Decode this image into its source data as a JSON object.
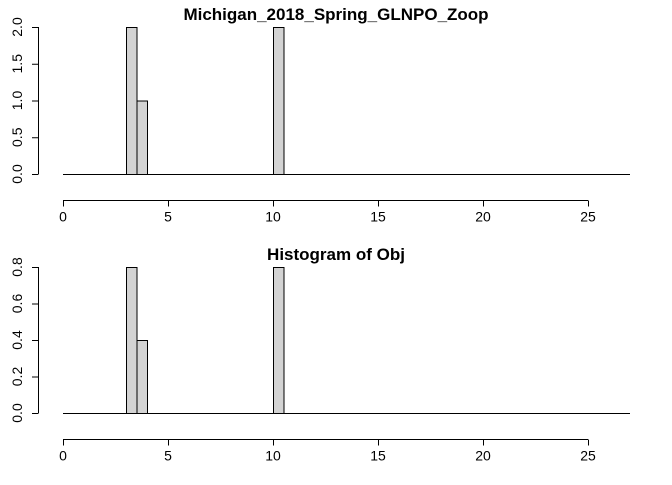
{
  "chart_data": [
    {
      "type": "bar",
      "title": "Michigan_2018_Spring_GLNPO_Zoop",
      "xlabel": "",
      "ylabel": "",
      "bin_width": 0.5,
      "bars": [
        {
          "x_start": 3.0,
          "x_end": 3.5,
          "value": 2
        },
        {
          "x_start": 3.5,
          "x_end": 4.0,
          "value": 1
        },
        {
          "x_start": 10.0,
          "x_end": 10.5,
          "value": 2
        }
      ],
      "x_baseline_range": [
        0,
        27
      ],
      "xlim": [
        0,
        27
      ],
      "ylim": [
        0,
        2
      ],
      "x_ticks": [
        0,
        5,
        10,
        15,
        20,
        25
      ],
      "x_tick_labels": [
        "0",
        "5",
        "10",
        "15",
        "20",
        "25"
      ],
      "y_ticks": [
        0,
        0.5,
        1.0,
        1.5,
        2.0
      ],
      "y_tick_labels": [
        "0.0",
        "0.5",
        "1.0",
        "1.5",
        "2.0"
      ],
      "bar_fill": "#d3d3d3",
      "bar_stroke": "#000000",
      "grid": false
    },
    {
      "type": "bar",
      "title": "Histogram of Obj",
      "xlabel": "",
      "ylabel": "",
      "bin_width": 0.5,
      "bars": [
        {
          "x_start": 3.0,
          "x_end": 3.5,
          "value": 0.8
        },
        {
          "x_start": 3.5,
          "x_end": 4.0,
          "value": 0.4
        },
        {
          "x_start": 10.0,
          "x_end": 10.5,
          "value": 0.8
        }
      ],
      "x_baseline_range": [
        0,
        27
      ],
      "xlim": [
        0,
        27
      ],
      "ylim": [
        0,
        0.8
      ],
      "x_ticks": [
        0,
        5,
        10,
        15,
        20,
        25
      ],
      "x_tick_labels": [
        "0",
        "5",
        "10",
        "15",
        "20",
        "25"
      ],
      "y_ticks": [
        0,
        0.2,
        0.4,
        0.6,
        0.8
      ],
      "y_tick_labels": [
        "0.0",
        "0.2",
        "0.4",
        "0.6",
        "0.8"
      ],
      "bar_fill": "#d3d3d3",
      "bar_stroke": "#000000",
      "grid": false
    }
  ]
}
